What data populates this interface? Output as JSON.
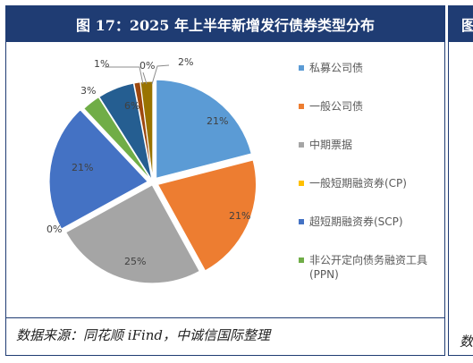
{
  "title": "图 17：2025 年上半年新增发行债券类型分布",
  "source": "数据来源：同花顺 iFind，中诚信国际整理",
  "right_panel": {
    "title_fragment": "图",
    "source_fragment": "数"
  },
  "chart_data": {
    "type": "pie",
    "slices": [
      {
        "name": "私募公司债",
        "value": 21,
        "label": "21%",
        "color": "#5b9bd5"
      },
      {
        "name": "一般公司债",
        "value": 21,
        "label": "21%",
        "color": "#ed7d31"
      },
      {
        "name": "中期票据",
        "value": 25,
        "label": "25%",
        "color": "#a5a5a5"
      },
      {
        "name": "一般短期融资券(CP)",
        "value": 0,
        "label": "0%",
        "color": "#ffc000"
      },
      {
        "name": "超短期融资券(SCP)",
        "value": 21,
        "label": "21%",
        "color": "#4472c4"
      },
      {
        "name": "非公开定向债务融资工具(PPN)",
        "value": 3,
        "label": "3%",
        "color": "#70ad47"
      },
      {
        "name": "",
        "value": 6,
        "label": "6%",
        "color": "#255e91"
      },
      {
        "name": "",
        "value": 1,
        "label": "1%",
        "color": "#9e480e"
      },
      {
        "name": "",
        "value": 0,
        "label": "0%",
        "color": "#636363"
      },
      {
        "name": "",
        "value": 2,
        "label": "2%",
        "color": "#997300"
      }
    ],
    "legend": [
      "私募公司债",
      "一般公司债",
      "中期票据",
      "一般短期融资券(CP)",
      "超短期融资券(SCP)",
      "非公开定向债务融资工具(PPN)"
    ],
    "legend_position": "right"
  }
}
